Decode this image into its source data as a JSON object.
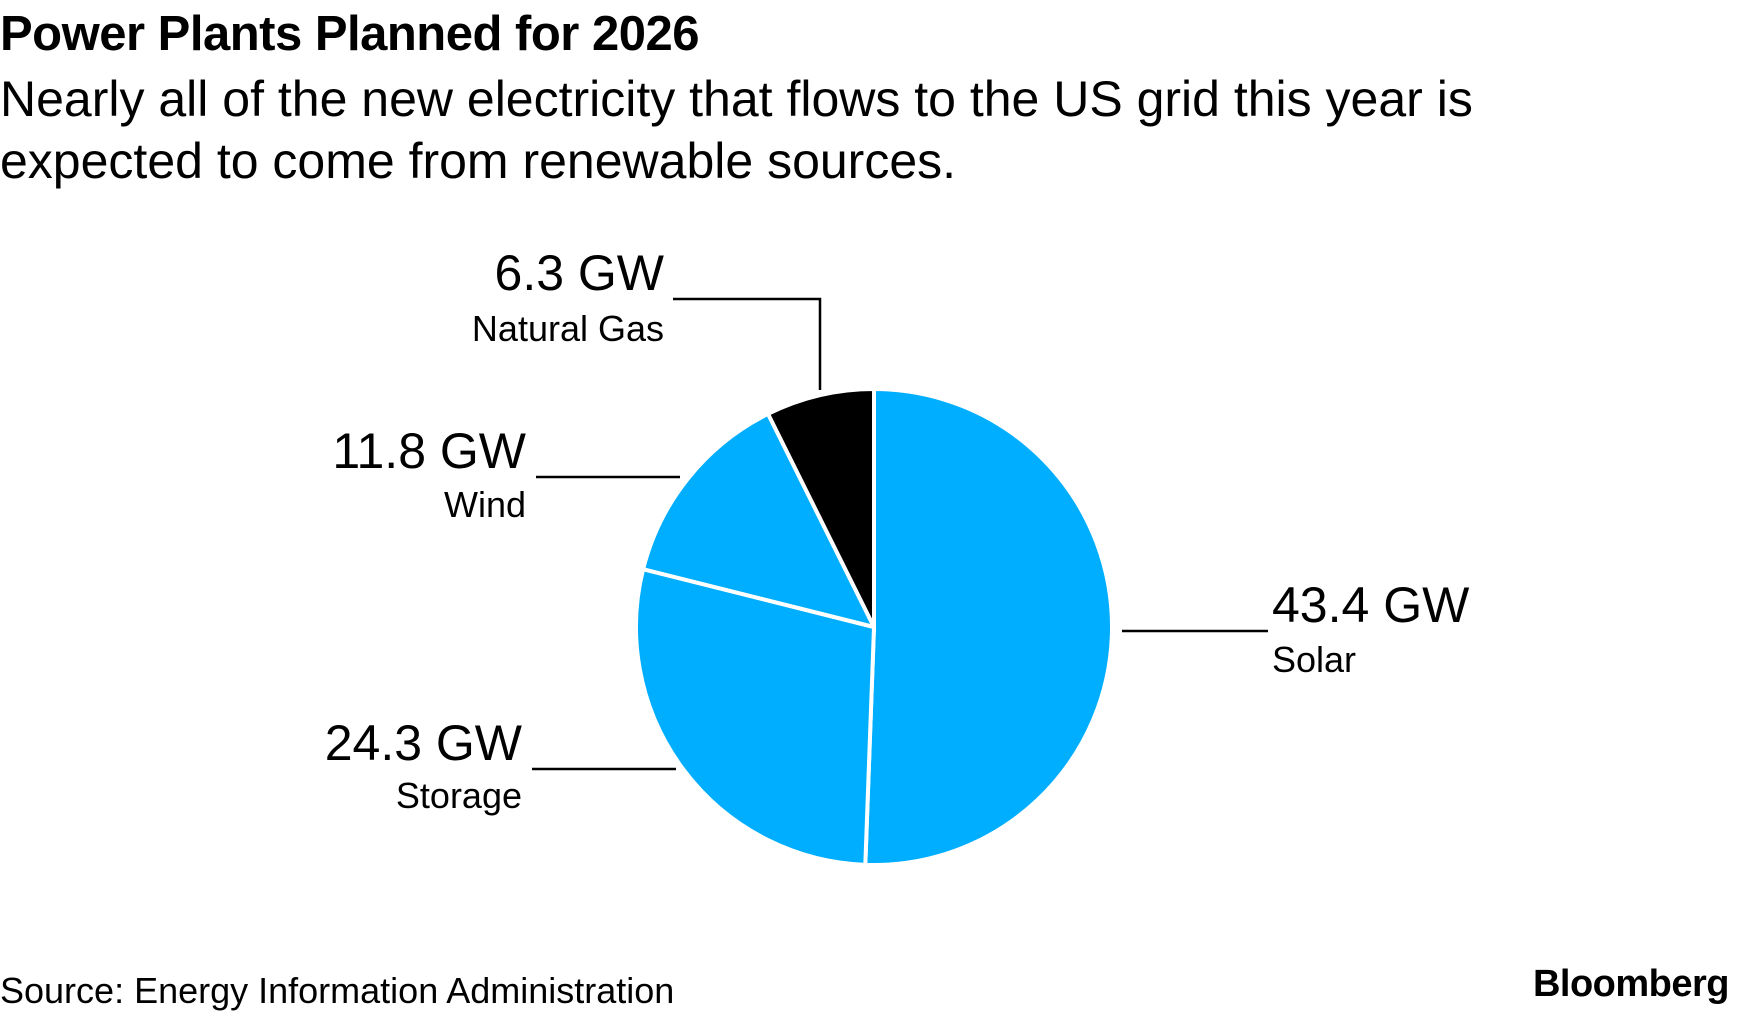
{
  "title": "Power Plants Planned for 2026",
  "subtitle": "Nearly all of the new electricity that flows to the US grid this year is expected to come from renewable sources.",
  "source": "Source: Energy Information Administration",
  "brand": "Bloomberg",
  "colors": {
    "renewable": "#00AEFF",
    "fossil": "#000000",
    "divider": "#ffffff",
    "leader": "#000000"
  },
  "chart_data": {
    "type": "pie",
    "unit": "GW",
    "start": "12 o'clock",
    "direction": "clockwise",
    "slices": [
      {
        "name": "Solar",
        "value": 43.4,
        "value_label": "43.4 GW",
        "color": "#00AEFF"
      },
      {
        "name": "Storage",
        "value": 24.3,
        "value_label": "24.3 GW",
        "color": "#00AEFF"
      },
      {
        "name": "Wind",
        "value": 11.8,
        "value_label": "11.8 GW",
        "color": "#00AEFF"
      },
      {
        "name": "Natural Gas",
        "value": 6.3,
        "value_label": "6.3 GW",
        "color": "#000000"
      }
    ]
  }
}
